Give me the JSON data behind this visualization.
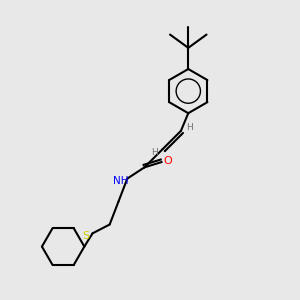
{
  "background_color": "#e8e8e8",
  "bond_color": "#000000",
  "atom_colors": {
    "N": "#0000ff",
    "O": "#ff0000",
    "S": "#cccc00",
    "C": "#000000",
    "H": "#707070"
  },
  "figsize": [
    3.0,
    3.0
  ],
  "dpi": 100
}
